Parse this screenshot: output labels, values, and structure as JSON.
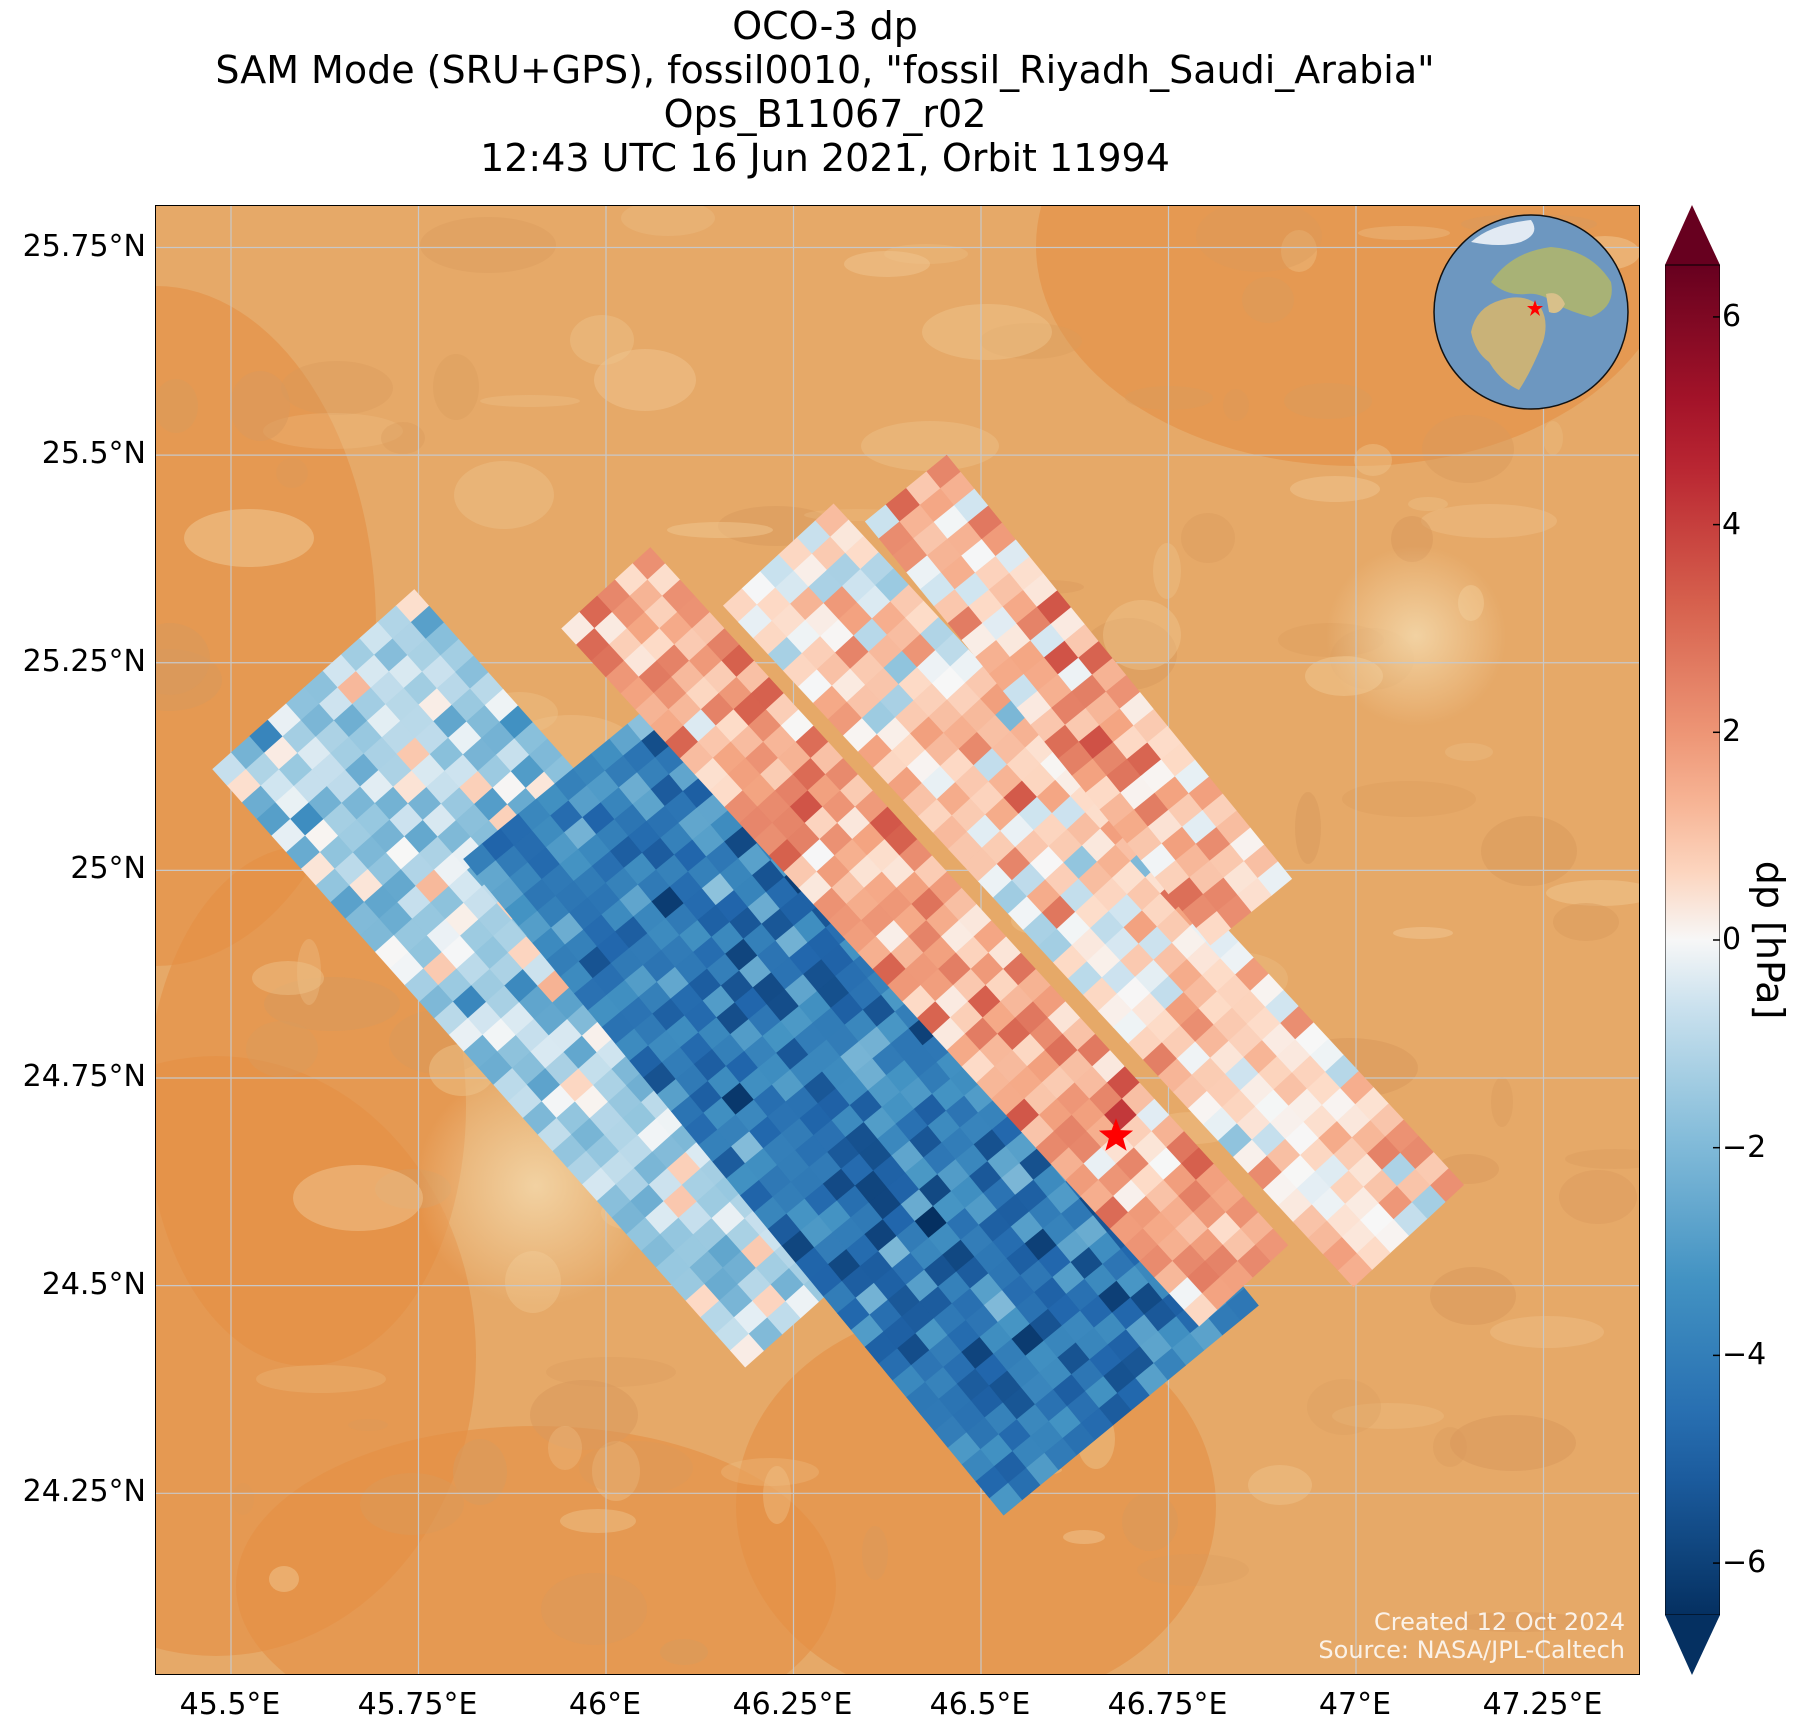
{
  "title": {
    "line1": "OCO-3 dp",
    "line2": "SAM Mode (SRU+GPS), fossil0010, \"fossil_Riyadh_Saudi_Arabia\"",
    "line3": "Ops_B11067_r02",
    "line4": "12:43 UTC 16 Jun 2021, Orbit 11994"
  },
  "map": {
    "lon_range": [
      45.4,
      47.38
    ],
    "lat_range": [
      24.03,
      25.8
    ],
    "lat_ticks": [
      "25.75°N",
      "25.5°N",
      "25.25°N",
      "25°N",
      "24.75°N",
      "24.5°N",
      "24.25°N"
    ],
    "lat_tick_values": [
      25.75,
      25.5,
      25.25,
      25.0,
      24.75,
      24.5,
      24.25
    ],
    "lon_ticks": [
      "45.5°E",
      "45.75°E",
      "46°E",
      "46.25°E",
      "46.5°E",
      "46.75°E",
      "47°E",
      "47.25°E"
    ],
    "lon_tick_values": [
      45.5,
      45.75,
      46.0,
      46.25,
      46.5,
      46.75,
      47.0,
      47.25
    ],
    "target": {
      "name": "fossil_Riyadh_Saudi_Arabia",
      "lon": 46.68,
      "lat": 24.68
    },
    "background": "satellite desert imagery",
    "colors": {
      "sand": "#e6a968",
      "dune": "#e58f45",
      "target_star": "#ff0000",
      "grid": "#c8c8c8"
    },
    "gridlines": true,
    "inset": "orthographic globe with target star"
  },
  "swaths": [
    {
      "lon1": 45.61,
      "lat1": 25.23,
      "lon2": 46.32,
      "lat2": 24.51,
      "halfwidth": 0.18,
      "mean": -1.2
    },
    {
      "lon1": 45.98,
      "lat1": 25.14,
      "lon2": 46.7,
      "lat2": 24.35,
      "halfwidth": 0.22,
      "mean": -4.2
    },
    {
      "lon1": 46.0,
      "lat1": 25.34,
      "lon2": 46.85,
      "lat2": 24.5,
      "halfwidth": 0.08,
      "mean": 1.6
    },
    {
      "lon1": 46.23,
      "lat1": 25.38,
      "lon2": 47.07,
      "lat2": 24.56,
      "halfwidth": 0.1,
      "mean": 0.5
    },
    {
      "lon1": 46.4,
      "lat1": 25.46,
      "lon2": 46.86,
      "lat2": 24.95,
      "halfwidth": 0.07,
      "mean": 1.5
    }
  ],
  "colorbar": {
    "label": "dp [hPa]",
    "vmin": -6.5,
    "vmax": 6.5,
    "ticks": [
      "6",
      "4",
      "2",
      "0",
      "−2",
      "−4",
      "−6"
    ],
    "tick_values": [
      6,
      4,
      2,
      0,
      -2,
      -4,
      -6
    ],
    "cmap": "RdBu_r",
    "extend": "both"
  },
  "credits": {
    "line1": "Created 12 Oct 2024",
    "line2": "Source: NASA/JPL-Caltech"
  }
}
